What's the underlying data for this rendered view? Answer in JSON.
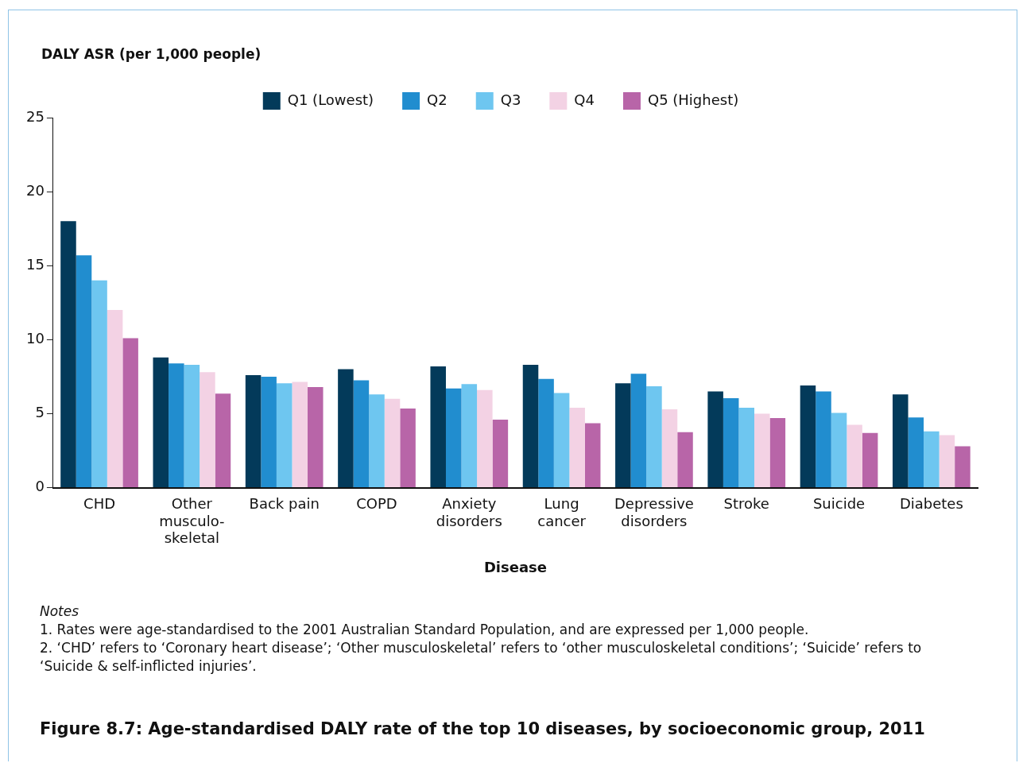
{
  "chart_data": {
    "type": "bar",
    "title": "Figure 8.7: Age-standardised DALY rate of the top 10 diseases, by socioeconomic group, 2011",
    "xlabel": "Disease",
    "ylabel": "DALY ASR (per 1,000 people)",
    "categories": [
      "CHD",
      "Other musculo-skeletal",
      "Back pain",
      "COPD",
      "Anxiety disorders",
      "Lung cancer",
      "Depressive disorders",
      "Stroke",
      "Suicide",
      "Diabetes"
    ],
    "series": [
      {
        "name": "Q1 (Lowest)",
        "color": "#033a5a",
        "values": [
          18.0,
          8.8,
          7.6,
          8.0,
          8.2,
          8.3,
          7.05,
          6.5,
          6.9,
          6.3
        ]
      },
      {
        "name": "Q2",
        "color": "#218dcf",
        "values": [
          15.7,
          8.4,
          7.5,
          7.25,
          6.7,
          7.35,
          7.7,
          6.05,
          6.5,
          4.75
        ]
      },
      {
        "name": "Q3",
        "color": "#6ec6f0",
        "values": [
          14.0,
          8.3,
          7.05,
          6.3,
          7.0,
          6.4,
          6.85,
          5.4,
          5.05,
          3.8
        ]
      },
      {
        "name": "Q4",
        "color": "#f3d2e4",
        "values": [
          12.0,
          7.8,
          7.15,
          6.0,
          6.6,
          5.4,
          5.3,
          5.0,
          4.25,
          3.55
        ]
      },
      {
        "name": "Q5 (Highest)",
        "color": "#b865a8",
        "values": [
          10.1,
          6.35,
          6.8,
          5.35,
          4.6,
          4.35,
          3.75,
          4.7,
          3.7,
          2.8
        ]
      }
    ],
    "ylim": [
      0,
      25
    ],
    "yticks": [
      0,
      5,
      10,
      15,
      20,
      25
    ],
    "grid": false,
    "legend": "top",
    "annotations": [
      "Notes",
      "1. Rates were age-standardised to the 2001 Australian Standard Population, and are expressed per 1,000 people.",
      "2. ‘CHD’ refers to ‘Coronary heart disease’; ‘Other musculoskeletal’ refers to ‘other musculoskeletal conditions’; ‘Suicide’ refers to ‘Suicide & self-inflicted injuries’."
    ]
  }
}
